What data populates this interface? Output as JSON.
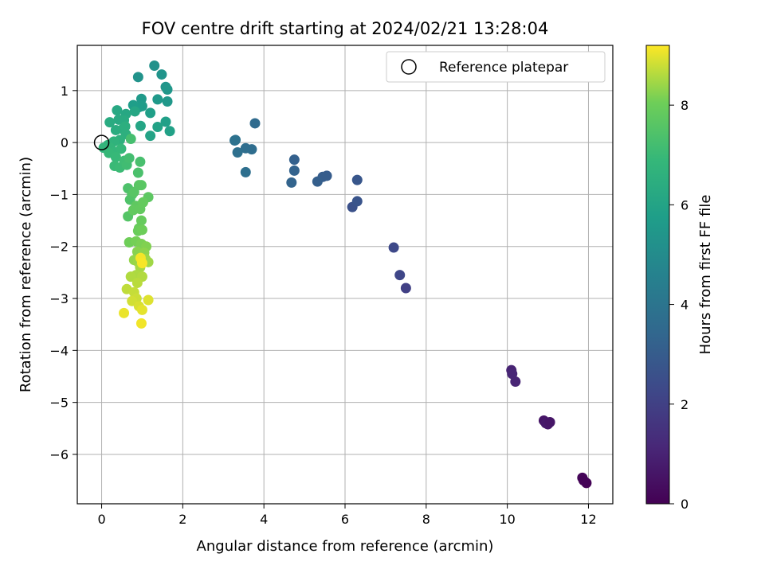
{
  "chart_data": {
    "type": "scatter",
    "title": "FOV centre drift starting at 2024/02/21 13:28:04",
    "xlabel": "Angular distance from reference (arcmin)",
    "ylabel": "Rotation from reference (arcmin)",
    "xlim": [
      -0.6,
      12.6
    ],
    "ylim": [
      -6.95,
      1.87
    ],
    "x_ticks": [
      0,
      2,
      4,
      6,
      8,
      10,
      12
    ],
    "y_ticks": [
      1,
      0,
      -1,
      -2,
      -3,
      -4,
      -5,
      -6
    ],
    "x_tick_labels": [
      "0",
      "2",
      "4",
      "6",
      "8",
      "10",
      "12"
    ],
    "y_tick_labels": [
      "1",
      "0",
      "−1",
      "−2",
      "−3",
      "−4",
      "−5",
      "−6"
    ],
    "grid": true,
    "legend": {
      "position": "top-right",
      "entries": [
        "Reference platepar"
      ]
    },
    "reference_point": {
      "x": 0,
      "y": 0
    },
    "colorbar": {
      "label": "Hours from first FF file",
      "colormap": "viridis",
      "range": [
        0,
        9.2
      ],
      "ticks": [
        0,
        2,
        4,
        6,
        8
      ],
      "tick_labels": [
        "0",
        "2",
        "4",
        "6",
        "8"
      ]
    },
    "points": [
      {
        "x": 11.95,
        "y": -6.55,
        "h": 0.05
      },
      {
        "x": 11.85,
        "y": -6.45,
        "h": 0.15
      },
      {
        "x": 11.88,
        "y": -6.5,
        "h": 0.1
      },
      {
        "x": 10.9,
        "y": -5.35,
        "h": 0.6
      },
      {
        "x": 11.0,
        "y": -5.42,
        "h": 0.65
      },
      {
        "x": 10.95,
        "y": -5.4,
        "h": 0.7
      },
      {
        "x": 11.05,
        "y": -5.38,
        "h": 0.62
      },
      {
        "x": 10.1,
        "y": -4.38,
        "h": 1.0
      },
      {
        "x": 10.2,
        "y": -4.6,
        "h": 1.05
      },
      {
        "x": 10.12,
        "y": -4.45,
        "h": 1.1
      },
      {
        "x": 7.5,
        "y": -2.8,
        "h": 2.0
      },
      {
        "x": 7.35,
        "y": -2.55,
        "h": 2.2
      },
      {
        "x": 7.2,
        "y": -2.02,
        "h": 2.3
      },
      {
        "x": 6.18,
        "y": -1.24,
        "h": 2.6
      },
      {
        "x": 6.3,
        "y": -1.13,
        "h": 2.7
      },
      {
        "x": 6.3,
        "y": -0.72,
        "h": 2.8
      },
      {
        "x": 5.55,
        "y": -0.64,
        "h": 3.0
      },
      {
        "x": 5.45,
        "y": -0.66,
        "h": 3.05
      },
      {
        "x": 5.32,
        "y": -0.75,
        "h": 3.1
      },
      {
        "x": 4.75,
        "y": -0.33,
        "h": 3.2
      },
      {
        "x": 4.75,
        "y": -0.54,
        "h": 3.25
      },
      {
        "x": 4.68,
        "y": -0.77,
        "h": 3.3
      },
      {
        "x": 3.78,
        "y": 0.37,
        "h": 3.6
      },
      {
        "x": 3.7,
        "y": -0.13,
        "h": 3.65
      },
      {
        "x": 3.55,
        "y": -0.11,
        "h": 3.7
      },
      {
        "x": 3.55,
        "y": -0.57,
        "h": 3.75
      },
      {
        "x": 3.35,
        "y": -0.19,
        "h": 3.8
      },
      {
        "x": 3.28,
        "y": 0.04,
        "h": 3.85
      },
      {
        "x": 3.3,
        "y": 0.05,
        "h": 3.9
      },
      {
        "x": 1.3,
        "y": 1.48,
        "h": 5.2
      },
      {
        "x": 0.9,
        "y": 1.26,
        "h": 5.3
      },
      {
        "x": 1.48,
        "y": 1.31,
        "h": 5.35
      },
      {
        "x": 1.58,
        "y": 1.07,
        "h": 5.4
      },
      {
        "x": 1.62,
        "y": 1.02,
        "h": 5.45
      },
      {
        "x": 1.62,
        "y": 0.79,
        "h": 5.5
      },
      {
        "x": 1.38,
        "y": 0.83,
        "h": 5.55
      },
      {
        "x": 0.98,
        "y": 0.84,
        "h": 5.6
      },
      {
        "x": 1.0,
        "y": 0.7,
        "h": 5.65
      },
      {
        "x": 0.92,
        "y": 0.68,
        "h": 5.7
      },
      {
        "x": 0.78,
        "y": 0.72,
        "h": 5.75
      },
      {
        "x": 1.2,
        "y": 0.57,
        "h": 5.8
      },
      {
        "x": 1.58,
        "y": 0.4,
        "h": 5.85
      },
      {
        "x": 1.68,
        "y": 0.22,
        "h": 5.9
      },
      {
        "x": 1.38,
        "y": 0.3,
        "h": 5.95
      },
      {
        "x": 1.2,
        "y": 0.13,
        "h": 6.0
      },
      {
        "x": 0.96,
        "y": 0.32,
        "h": 6.05
      },
      {
        "x": 0.82,
        "y": 0.6,
        "h": 6.1
      },
      {
        "x": 0.6,
        "y": 0.55,
        "h": 6.15
      },
      {
        "x": 0.38,
        "y": 0.62,
        "h": 6.2
      },
      {
        "x": 0.42,
        "y": 0.44,
        "h": 6.25
      },
      {
        "x": 0.55,
        "y": 0.43,
        "h": 6.3
      },
      {
        "x": 0.2,
        "y": 0.39,
        "h": 6.35
      },
      {
        "x": 0.35,
        "y": 0.24,
        "h": 6.4
      },
      {
        "x": 0.52,
        "y": 0.26,
        "h": 6.45
      },
      {
        "x": 0.58,
        "y": 0.31,
        "h": 6.5
      },
      {
        "x": 0.6,
        "y": 0.16,
        "h": 6.55
      },
      {
        "x": 0.45,
        "y": 0.05,
        "h": 6.6
      },
      {
        "x": 0.3,
        "y": 0.02,
        "h": 6.65
      },
      {
        "x": 0.15,
        "y": -0.05,
        "h": 6.7
      },
      {
        "x": 0.05,
        "y": -0.1,
        "h": 6.75
      },
      {
        "x": 0.22,
        "y": -0.11,
        "h": 6.8
      },
      {
        "x": 0.32,
        "y": -0.18,
        "h": 6.85
      },
      {
        "x": 0.48,
        "y": -0.12,
        "h": 6.9
      },
      {
        "x": 0.18,
        "y": -0.2,
        "h": 6.92
      },
      {
        "x": 0.35,
        "y": -0.28,
        "h": 6.95
      },
      {
        "x": 0.32,
        "y": -0.45,
        "h": 7.0
      },
      {
        "x": 0.45,
        "y": -0.48,
        "h": 7.05
      },
      {
        "x": 0.56,
        "y": -0.35,
        "h": 7.1
      },
      {
        "x": 0.62,
        "y": -0.43,
        "h": 7.15
      },
      {
        "x": 0.68,
        "y": -0.3,
        "h": 7.2
      },
      {
        "x": 0.72,
        "y": 0.07,
        "h": 7.25
      },
      {
        "x": 0.95,
        "y": -0.37,
        "h": 7.3
      },
      {
        "x": 0.9,
        "y": -0.58,
        "h": 7.35
      },
      {
        "x": 0.65,
        "y": -0.88,
        "h": 7.4
      },
      {
        "x": 0.7,
        "y": -1.1,
        "h": 7.45
      },
      {
        "x": 0.75,
        "y": -1.0,
        "h": 7.5
      },
      {
        "x": 0.65,
        "y": -1.42,
        "h": 7.55
      },
      {
        "x": 0.8,
        "y": -0.95,
        "h": 7.6
      },
      {
        "x": 0.92,
        "y": -0.82,
        "h": 7.62
      },
      {
        "x": 0.98,
        "y": -0.82,
        "h": 7.65
      },
      {
        "x": 1.15,
        "y": -1.05,
        "h": 7.7
      },
      {
        "x": 0.85,
        "y": -1.22,
        "h": 7.75
      },
      {
        "x": 0.78,
        "y": -1.3,
        "h": 7.8
      },
      {
        "x": 0.95,
        "y": -1.28,
        "h": 7.82
      },
      {
        "x": 1.02,
        "y": -1.15,
        "h": 7.85
      },
      {
        "x": 0.98,
        "y": -1.5,
        "h": 7.88
      },
      {
        "x": 0.92,
        "y": -1.65,
        "h": 7.9
      },
      {
        "x": 0.9,
        "y": -1.7,
        "h": 7.95
      },
      {
        "x": 1.0,
        "y": -1.68,
        "h": 8.0
      },
      {
        "x": 0.68,
        "y": -1.92,
        "h": 8.05
      },
      {
        "x": 0.85,
        "y": -1.9,
        "h": 8.1
      },
      {
        "x": 0.98,
        "y": -1.95,
        "h": 8.15
      },
      {
        "x": 1.1,
        "y": -2.0,
        "h": 8.2
      },
      {
        "x": 0.88,
        "y": -2.1,
        "h": 8.25
      },
      {
        "x": 1.05,
        "y": -2.12,
        "h": 8.3
      },
      {
        "x": 0.8,
        "y": -2.26,
        "h": 8.35
      },
      {
        "x": 0.9,
        "y": -2.3,
        "h": 8.4
      },
      {
        "x": 1.08,
        "y": -2.24,
        "h": 8.42
      },
      {
        "x": 1.15,
        "y": -2.3,
        "h": 8.45
      },
      {
        "x": 0.95,
        "y": -2.4,
        "h": 8.5
      },
      {
        "x": 0.85,
        "y": -2.55,
        "h": 8.55
      },
      {
        "x": 0.72,
        "y": -2.58,
        "h": 8.58
      },
      {
        "x": 1.0,
        "y": -2.58,
        "h": 8.6
      },
      {
        "x": 0.88,
        "y": -2.7,
        "h": 8.65
      },
      {
        "x": 0.62,
        "y": -2.82,
        "h": 8.7
      },
      {
        "x": 0.8,
        "y": -2.88,
        "h": 8.75
      },
      {
        "x": 0.86,
        "y": -3.0,
        "h": 8.8
      },
      {
        "x": 0.75,
        "y": -3.05,
        "h": 8.85
      },
      {
        "x": 0.92,
        "y": -3.15,
        "h": 8.9
      },
      {
        "x": 1.15,
        "y": -3.03,
        "h": 8.95
      },
      {
        "x": 1.0,
        "y": -3.22,
        "h": 9.0
      },
      {
        "x": 0.55,
        "y": -3.28,
        "h": 9.05
      },
      {
        "x": 0.98,
        "y": -3.48,
        "h": 9.1
      },
      {
        "x": 0.96,
        "y": -2.22,
        "h": 9.12
      },
      {
        "x": 1.0,
        "y": -2.32,
        "h": 9.15
      }
    ]
  }
}
